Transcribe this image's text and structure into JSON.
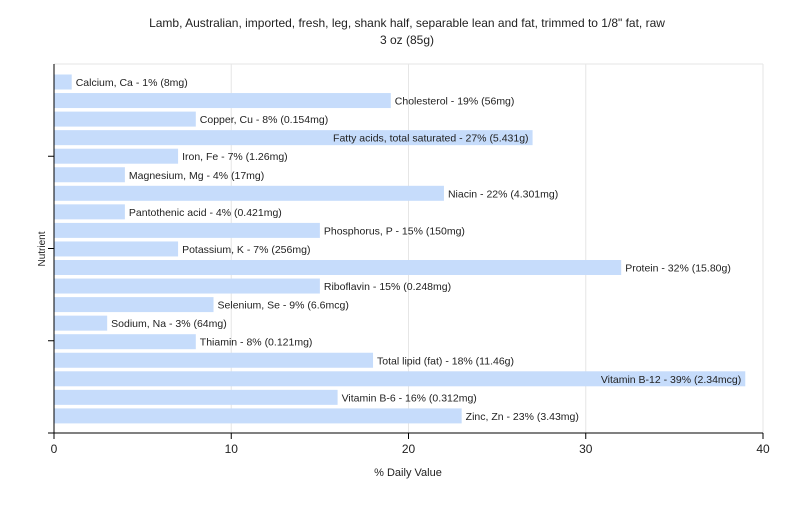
{
  "chart_data": {
    "type": "bar",
    "orientation": "horizontal",
    "title": "Lamb, Australian, imported, fresh, leg, shank half, separable lean and fat, trimmed to 1/8\" fat, raw",
    "subtitle": "3 oz (85g)",
    "xlabel": "% Daily Value",
    "ylabel": "Nutrient",
    "xlim": [
      0,
      40
    ],
    "xticks": [
      0,
      10,
      20,
      30,
      40
    ],
    "grid": true,
    "bar_color": "#c6dcfb",
    "categories": [
      "Calcium, Ca",
      "Cholesterol",
      "Copper, Cu",
      "Fatty acids, total saturated",
      "Iron, Fe",
      "Magnesium, Mg",
      "Niacin",
      "Pantothenic acid",
      "Phosphorus, P",
      "Potassium, K",
      "Protein",
      "Riboflavin",
      "Selenium, Se",
      "Sodium, Na",
      "Thiamin",
      "Total lipid (fat)",
      "Vitamin B-12",
      "Vitamin B-6",
      "Zinc, Zn"
    ],
    "values": [
      1,
      19,
      8,
      27,
      7,
      4,
      22,
      4,
      15,
      7,
      32,
      15,
      9,
      3,
      8,
      18,
      39,
      16,
      23
    ],
    "labels": [
      "Calcium, Ca - 1% (8mg)",
      "Cholesterol - 19% (56mg)",
      "Copper, Cu - 8% (0.154mg)",
      "Fatty acids, total saturated - 27% (5.431g)",
      "Iron, Fe - 7% (1.26mg)",
      "Magnesium, Mg - 4% (17mg)",
      "Niacin - 22% (4.301mg)",
      "Pantothenic acid - 4% (0.421mg)",
      "Phosphorus, P - 15% (150mg)",
      "Potassium, K - 7% (256mg)",
      "Protein - 32% (15.80g)",
      "Riboflavin - 15% (0.248mg)",
      "Selenium, Se - 9% (6.6mcg)",
      "Sodium, Na - 3% (64mg)",
      "Thiamin - 8% (0.121mg)",
      "Total lipid (fat) - 18% (11.46g)",
      "Vitamin B-12 - 39% (2.34mcg)",
      "Vitamin B-6 - 16% (0.312mg)",
      "Zinc, Zn - 23% (3.43mg)"
    ]
  }
}
